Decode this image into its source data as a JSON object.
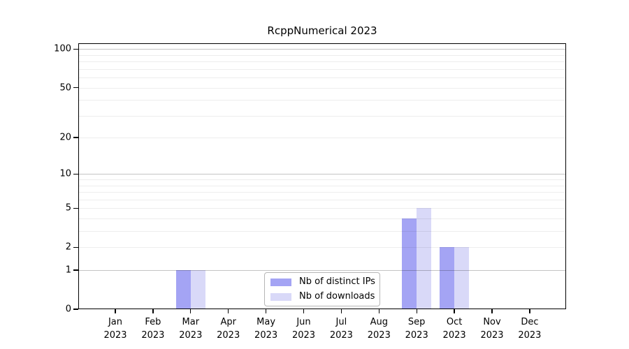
{
  "chart_data": {
    "type": "bar",
    "title": "RcppNumerical 2023",
    "categories": [
      "Jan 2023",
      "Feb 2023",
      "Mar 2023",
      "Apr 2023",
      "May 2023",
      "Jun 2023",
      "Jul 2023",
      "Aug 2023",
      "Sep 2023",
      "Oct 2023",
      "Nov 2023",
      "Dec 2023"
    ],
    "series": [
      {
        "name": "Nb of distinct IPs",
        "color": "#a4a4f4",
        "values": [
          0,
          0,
          1,
          0,
          0,
          0,
          0,
          0,
          4,
          2,
          0,
          0
        ]
      },
      {
        "name": "Nb of downloads",
        "color": "#d9d9f8",
        "values": [
          0,
          0,
          1,
          0,
          0,
          0,
          0,
          0,
          5,
          2,
          0,
          0
        ]
      }
    ],
    "yscale": "log1p",
    "ylim": [
      0,
      111
    ],
    "yticks": [
      0,
      1,
      2,
      5,
      10,
      20,
      50,
      100
    ],
    "major_gridlines": [
      1,
      10,
      100
    ],
    "minor_gridlines": [
      2,
      3,
      4,
      5,
      6,
      7,
      8,
      9,
      20,
      30,
      40,
      50,
      60,
      70,
      80,
      90
    ],
    "grid": true,
    "legend_position": "lower center",
    "colors": {
      "bar_ips": "#a4a4f4",
      "bar_downloads": "#d9d9f8",
      "grid_major": "#c6c6c6",
      "grid_minor": "#ededed",
      "axis": "#000000",
      "legend_border": "#b6b6b6",
      "background": "#ffffff"
    }
  }
}
